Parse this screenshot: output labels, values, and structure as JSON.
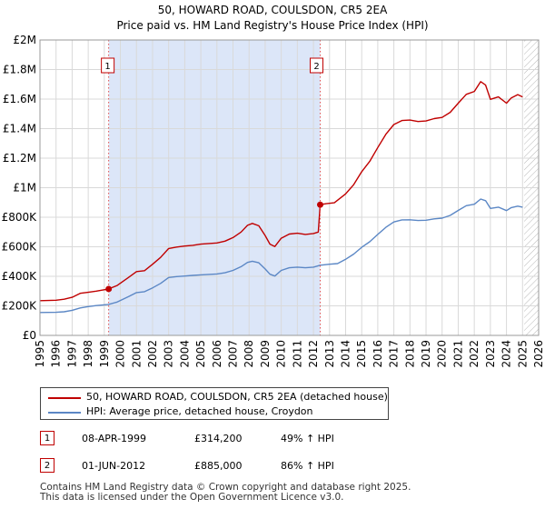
{
  "chart_data": {
    "type": "line",
    "title": "50, HOWARD ROAD, COULSDON, CR5 2EA",
    "subtitle": "Price paid vs. HM Land Registry's House Price Index (HPI)",
    "xlim": [
      1995,
      2026
    ],
    "ylim": [
      0,
      2000000
    ],
    "x_ticks": [
      "1995",
      "1996",
      "1997",
      "1998",
      "1999",
      "2000",
      "2001",
      "2002",
      "2003",
      "2004",
      "2005",
      "2006",
      "2007",
      "2008",
      "2009",
      "2010",
      "2011",
      "2012",
      "2013",
      "2014",
      "2015",
      "2016",
      "2017",
      "2018",
      "2019",
      "2020",
      "2021",
      "2022",
      "2023",
      "2024",
      "2025",
      "2026"
    ],
    "y_ticks": [
      {
        "value": 0,
        "label": "£0"
      },
      {
        "value": 200000,
        "label": "£200K"
      },
      {
        "value": 400000,
        "label": "£400K"
      },
      {
        "value": 600000,
        "label": "£600K"
      },
      {
        "value": 800000,
        "label": "£800K"
      },
      {
        "value": 1000000,
        "label": "£1M"
      },
      {
        "value": 1200000,
        "label": "£1.2M"
      },
      {
        "value": 1400000,
        "label": "£1.4M"
      },
      {
        "value": 1600000,
        "label": "£1.6M"
      },
      {
        "value": 1800000,
        "label": "£1.8M"
      },
      {
        "value": 2000000,
        "label": "£2M"
      }
    ],
    "grid": true,
    "shaded_region": {
      "from": 1999.27,
      "to": 2012.42,
      "color": "#dce6f8"
    },
    "future_hatch_from": 2025.1,
    "series": [
      {
        "name": "50, HOWARD ROAD, COULSDON, CR5 2EA (detached house)",
        "color": "#c00000",
        "points": [
          [
            1995.0,
            235000
          ],
          [
            1996.0,
            238000
          ],
          [
            1996.5,
            245000
          ],
          [
            1997.0,
            258000
          ],
          [
            1997.5,
            285000
          ],
          [
            1998.0,
            292000
          ],
          [
            1998.5,
            300000
          ],
          [
            1999.27,
            314200
          ],
          [
            1999.8,
            338000
          ],
          [
            2000.5,
            392000
          ],
          [
            2001.0,
            432000
          ],
          [
            2001.5,
            438000
          ],
          [
            2002.0,
            482000
          ],
          [
            2002.5,
            528000
          ],
          [
            2003.0,
            588000
          ],
          [
            2003.5,
            598000
          ],
          [
            2004.0,
            605000
          ],
          [
            2004.5,
            610000
          ],
          [
            2005.0,
            618000
          ],
          [
            2005.5,
            622000
          ],
          [
            2006.0,
            626000
          ],
          [
            2006.5,
            638000
          ],
          [
            2007.0,
            662000
          ],
          [
            2007.5,
            700000
          ],
          [
            2007.9,
            745000
          ],
          [
            2008.2,
            758000
          ],
          [
            2008.6,
            742000
          ],
          [
            2009.0,
            676000
          ],
          [
            2009.3,
            618000
          ],
          [
            2009.6,
            602000
          ],
          [
            2010.0,
            658000
          ],
          [
            2010.5,
            686000
          ],
          [
            2011.0,
            692000
          ],
          [
            2011.5,
            684000
          ],
          [
            2012.0,
            690000
          ],
          [
            2012.3,
            700000
          ],
          [
            2012.42,
            885000
          ],
          [
            2012.8,
            892000
          ],
          [
            2013.3,
            898000
          ],
          [
            2014.0,
            958000
          ],
          [
            2014.5,
            1020000
          ],
          [
            2015.0,
            1108000
          ],
          [
            2015.5,
            1178000
          ],
          [
            2016.0,
            1272000
          ],
          [
            2016.5,
            1362000
          ],
          [
            2017.0,
            1428000
          ],
          [
            2017.5,
            1455000
          ],
          [
            2018.0,
            1458000
          ],
          [
            2018.5,
            1448000
          ],
          [
            2019.0,
            1452000
          ],
          [
            2019.5,
            1468000
          ],
          [
            2020.0,
            1476000
          ],
          [
            2020.5,
            1510000
          ],
          [
            2021.0,
            1572000
          ],
          [
            2021.5,
            1632000
          ],
          [
            2022.0,
            1652000
          ],
          [
            2022.4,
            1718000
          ],
          [
            2022.7,
            1695000
          ],
          [
            2023.0,
            1598000
          ],
          [
            2023.5,
            1615000
          ],
          [
            2024.0,
            1572000
          ],
          [
            2024.3,
            1608000
          ],
          [
            2024.7,
            1630000
          ],
          [
            2025.0,
            1615000
          ]
        ]
      },
      {
        "name": "HPI: Average price, detached house, Croydon",
        "color": "#5b87c5",
        "points": [
          [
            1995.0,
            155000
          ],
          [
            1996.0,
            156000
          ],
          [
            1996.5,
            160000
          ],
          [
            1997.0,
            170000
          ],
          [
            1997.5,
            186000
          ],
          [
            1998.0,
            195000
          ],
          [
            1998.5,
            202000
          ],
          [
            1999.27,
            210000
          ],
          [
            1999.8,
            226000
          ],
          [
            2000.5,
            262000
          ],
          [
            2001.0,
            290000
          ],
          [
            2001.5,
            296000
          ],
          [
            2002.0,
            322000
          ],
          [
            2002.5,
            352000
          ],
          [
            2003.0,
            392000
          ],
          [
            2003.5,
            398000
          ],
          [
            2004.0,
            402000
          ],
          [
            2004.5,
            406000
          ],
          [
            2005.0,
            410000
          ],
          [
            2005.5,
            413000
          ],
          [
            2006.0,
            416000
          ],
          [
            2006.5,
            424000
          ],
          [
            2007.0,
            440000
          ],
          [
            2007.5,
            465000
          ],
          [
            2007.9,
            494000
          ],
          [
            2008.2,
            502000
          ],
          [
            2008.6,
            492000
          ],
          [
            2009.0,
            450000
          ],
          [
            2009.3,
            414000
          ],
          [
            2009.6,
            402000
          ],
          [
            2010.0,
            440000
          ],
          [
            2010.5,
            458000
          ],
          [
            2011.0,
            462000
          ],
          [
            2011.5,
            458000
          ],
          [
            2012.0,
            462000
          ],
          [
            2012.42,
            475000
          ],
          [
            2013.0,
            482000
          ],
          [
            2013.5,
            486000
          ],
          [
            2014.0,
            515000
          ],
          [
            2014.5,
            550000
          ],
          [
            2015.0,
            596000
          ],
          [
            2015.5,
            634000
          ],
          [
            2016.0,
            684000
          ],
          [
            2016.5,
            732000
          ],
          [
            2017.0,
            768000
          ],
          [
            2017.5,
            782000
          ],
          [
            2018.0,
            783000
          ],
          [
            2018.5,
            778000
          ],
          [
            2019.0,
            780000
          ],
          [
            2019.5,
            789000
          ],
          [
            2020.0,
            794000
          ],
          [
            2020.5,
            812000
          ],
          [
            2021.0,
            846000
          ],
          [
            2021.5,
            878000
          ],
          [
            2022.0,
            888000
          ],
          [
            2022.4,
            923000
          ],
          [
            2022.7,
            912000
          ],
          [
            2023.0,
            860000
          ],
          [
            2023.5,
            868000
          ],
          [
            2024.0,
            845000
          ],
          [
            2024.3,
            865000
          ],
          [
            2024.7,
            875000
          ],
          [
            2025.0,
            868000
          ]
        ]
      }
    ],
    "sales": [
      {
        "label": "1",
        "x": 1999.27,
        "value": 314200,
        "date": "08-APR-1999",
        "price": "£314,200",
        "hpi": "49% ↑ HPI"
      },
      {
        "label": "2",
        "x": 2012.42,
        "value": 885000,
        "date": "01-JUN-2012",
        "price": "£885,000",
        "hpi": "86% ↑ HPI"
      }
    ]
  },
  "legend": {
    "property_label": "50, HOWARD ROAD, COULSDON, CR5 2EA (detached house)",
    "hpi_label": "HPI: Average price, detached house, Croydon"
  },
  "footer": {
    "line1": "Contains HM Land Registry data © Crown copyright and database right 2025.",
    "line2": "This data is licensed under the Open Government Licence v3.0."
  }
}
